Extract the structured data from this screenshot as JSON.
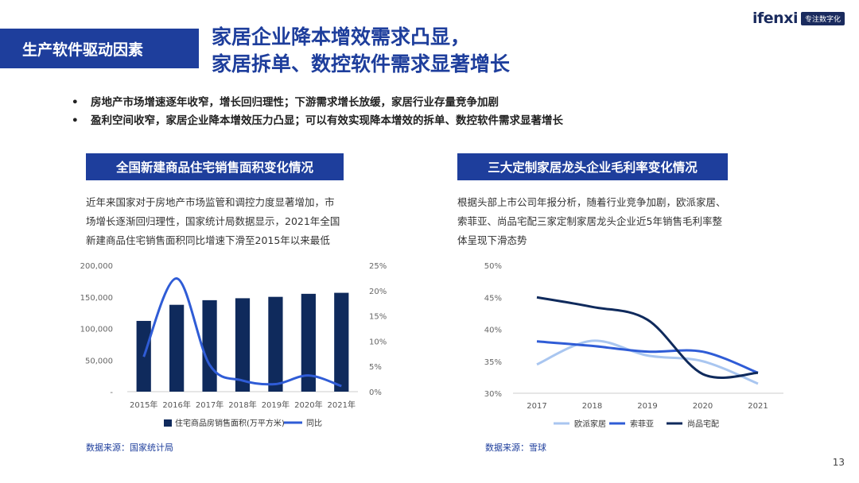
{
  "logo": {
    "word": "ifenxi",
    "tag": "专注数字化"
  },
  "section_tab": "生产软件驱动因素",
  "headline": [
    "家居企业降本增效需求凸显，",
    "家居拆单、数控软件需求显著增长"
  ],
  "bullets": [
    "房地产市场增速逐年收窄，增长回归理性；下游需求增长放缓，家居行业存量竞争加剧",
    "盈利空间收窄，家居企业降本增效压力凸显；可以有效实现降本增效的拆单、数控软件需求显著增长"
  ],
  "left": {
    "title": "全国新建商品住宅销售面积变化情况",
    "desc": [
      "近年来国家对于房地产市场监管和调控力度显著增加，市",
      "场增长逐渐回归理性，国家统计局数据显示，2021年全国",
      "新建商品住宅销售面积同比增速下滑至2015年以来最低"
    ],
    "source": "数据来源：国家统计局"
  },
  "right": {
    "title": "三大定制家居龙头企业毛利率变化情况",
    "desc": [
      "根据头部上市公司年报分析，随着行业竞争加剧，欧派家居、",
      "索菲亚、尚品宅配三家定制家居龙头企业近5年销售毛利率整",
      "体呈现下滑态势"
    ],
    "source": "数据来源：雪球"
  },
  "page_number": "13",
  "colors": {
    "brand": "#1e3e9c",
    "bar": "#0f2a5c",
    "line": "#2f5cd6",
    "oppein": "#a9c6f0",
    "sofia": "#2f5cd6",
    "shangpin": "#0f2a5c"
  },
  "chart_data": [
    {
      "type": "bar",
      "categories": [
        "2015年",
        "2016年",
        "2017年",
        "2018年",
        "2019年",
        "2020年",
        "2021年"
      ],
      "series": [
        {
          "name": "住宅商品房销售面积(万平方米)",
          "type": "bar",
          "axis": "left",
          "values": [
            112000,
            137500,
            144800,
            147900,
            150100,
            154900,
            156500
          ]
        },
        {
          "name": "同比",
          "type": "line",
          "axis": "right",
          "values": [
            6.9,
            22.4,
            5.3,
            2.2,
            1.5,
            3.2,
            1.1
          ]
        }
      ],
      "ylim_left": [
        0,
        200000
      ],
      "yticks_left": [
        "-",
        "50,000",
        "100,000",
        "150,000",
        "200,000"
      ],
      "ylim_right": [
        0,
        25
      ],
      "yticks_right": [
        "0%",
        "5%",
        "10%",
        "15%",
        "20%",
        "25%"
      ],
      "legend": "bottom"
    },
    {
      "type": "line",
      "categories": [
        "2017",
        "2018",
        "2019",
        "2020",
        "2021"
      ],
      "series": [
        {
          "name": "欧派家居",
          "values": [
            34.5,
            38.2,
            35.9,
            35.0,
            31.5
          ]
        },
        {
          "name": "索菲亚",
          "values": [
            38.1,
            37.4,
            36.5,
            36.5,
            33.2
          ]
        },
        {
          "name": "尚品宅配",
          "values": [
            45.0,
            43.5,
            41.5,
            33.0,
            33.2
          ]
        }
      ],
      "ylim": [
        30,
        50
      ],
      "yticks": [
        "30%",
        "35%",
        "40%",
        "45%",
        "50%"
      ],
      "legend": "bottom"
    }
  ]
}
